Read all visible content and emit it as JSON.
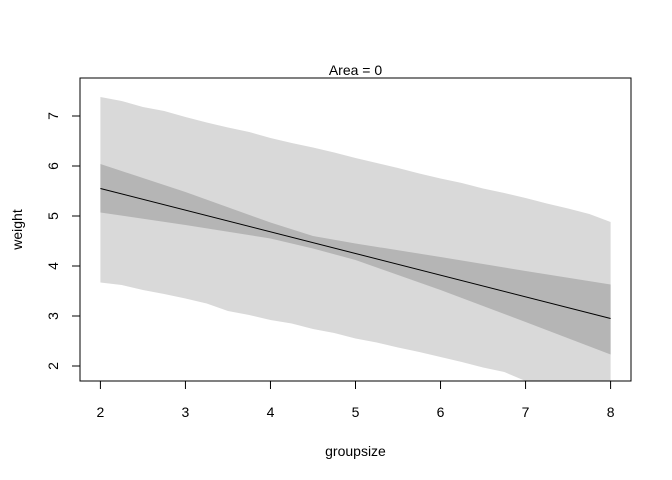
{
  "chart_data": {
    "type": "line",
    "title": "Area = 0",
    "xlabel": "groupsize",
    "ylabel": "weight",
    "xlim": [
      1.76,
      8.24
    ],
    "ylim": [
      1.7,
      7.76
    ],
    "x_ticks": [
      "2",
      "3",
      "4",
      "5",
      "6",
      "7",
      "8"
    ],
    "y_ticks": [
      "2",
      "3",
      "4",
      "5",
      "6",
      "7"
    ],
    "grid": false,
    "colors": {
      "prediction_interval": "#d9d9d9",
      "mean_interval": "#b5b5b5",
      "mean_line": "#000000",
      "axis": "#000000"
    },
    "series": [
      {
        "kind": "band",
        "x": [
          2.0,
          2.25,
          2.5,
          2.75,
          3.0,
          3.25,
          3.5,
          3.75,
          4.0,
          4.25,
          4.5,
          4.75,
          5.0,
          5.25,
          5.5,
          5.75,
          6.0,
          6.25,
          6.5,
          6.75,
          7.0,
          7.25,
          7.5,
          7.75,
          8.0
        ],
        "lower": [
          3.67,
          3.62,
          3.52,
          3.44,
          3.35,
          3.25,
          3.1,
          3.02,
          2.92,
          2.85,
          2.74,
          2.66,
          2.55,
          2.47,
          2.37,
          2.28,
          2.18,
          2.08,
          1.97,
          1.88,
          1.7,
          1.7,
          1.7,
          1.7,
          1.7
        ],
        "upper": [
          7.38,
          7.3,
          7.18,
          7.1,
          6.98,
          6.87,
          6.77,
          6.68,
          6.56,
          6.46,
          6.37,
          6.27,
          6.16,
          6.06,
          5.96,
          5.85,
          5.75,
          5.66,
          5.55,
          5.46,
          5.36,
          5.25,
          5.15,
          5.04,
          4.88
        ]
      },
      {
        "kind": "band",
        "x": [
          2.0,
          3.0,
          4.0,
          4.5,
          5.0,
          6.0,
          7.0,
          8.0
        ],
        "lower": [
          5.07,
          4.82,
          4.55,
          4.35,
          4.12,
          3.52,
          2.88,
          2.23
        ],
        "upper": [
          6.04,
          5.48,
          4.87,
          4.6,
          4.45,
          4.18,
          3.9,
          3.63
        ]
      },
      {
        "kind": "line",
        "x": [
          2,
          8
        ],
        "y": [
          5.55,
          2.95
        ]
      }
    ]
  }
}
